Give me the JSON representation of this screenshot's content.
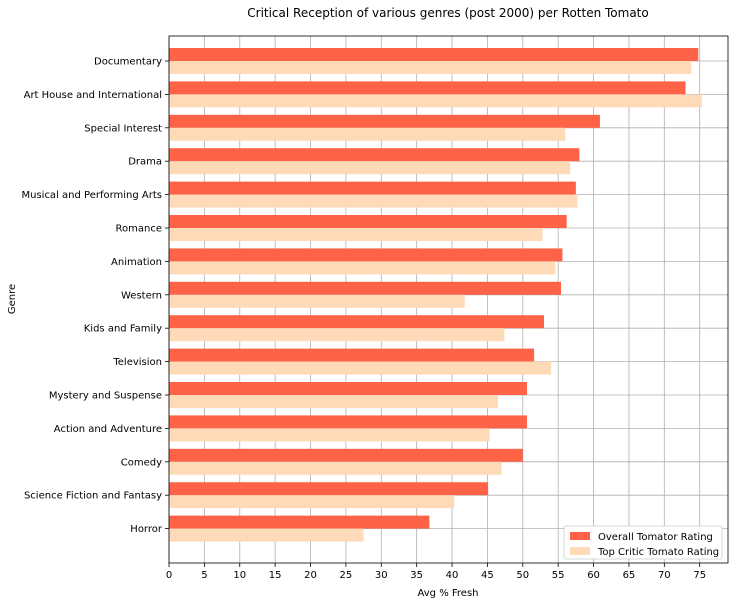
{
  "chart_data": {
    "type": "bar",
    "orientation": "horizontal",
    "title": "Critical Reception of various genres (post 2000) per Rotten Tomato",
    "xlabel": "Avg % Fresh",
    "ylabel": "Genre",
    "xlim": [
      0,
      79
    ],
    "xticks": [
      0,
      5,
      10,
      15,
      20,
      25,
      30,
      35,
      40,
      45,
      50,
      55,
      60,
      65,
      70,
      75
    ],
    "grid": true,
    "legend_position": "bottom-right",
    "categories": [
      "Documentary",
      "Art House and International",
      "Special Interest",
      "Drama",
      "Musical and Performing Arts",
      "Romance",
      "Animation",
      "Western",
      "Kids and Family",
      "Television",
      "Mystery and Suspense",
      "Action and Adventure",
      "Comedy",
      "Science Fiction and Fantasy",
      "Horror"
    ],
    "series": [
      {
        "name": "Overall Tomator Rating",
        "color": "#ff6347",
        "values": [
          74.8,
          73.0,
          60.9,
          58.0,
          57.5,
          56.2,
          55.6,
          55.4,
          53.0,
          51.6,
          50.6,
          50.6,
          50.0,
          45.1,
          36.8
        ]
      },
      {
        "name": "Top Critic Tomato Rating",
        "color": "#ffdab9",
        "values": [
          73.8,
          75.3,
          56.0,
          56.7,
          57.7,
          52.8,
          54.6,
          41.8,
          47.4,
          54.0,
          46.5,
          45.3,
          47.0,
          40.3,
          27.5
        ]
      }
    ]
  }
}
